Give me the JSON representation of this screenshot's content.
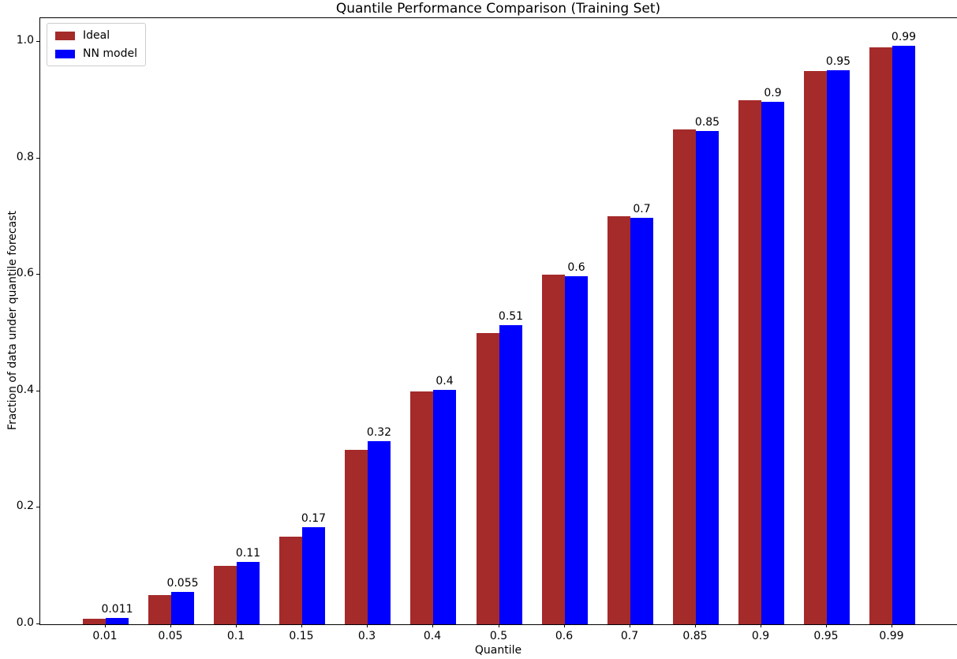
{
  "chart_data": {
    "type": "bar",
    "title": "Quantile Performance Comparison (Training Set)",
    "xlabel": "Quantile",
    "ylabel": "Fraction of data under quantile forecast",
    "categories": [
      "0.01",
      "0.05",
      "0.1",
      "0.15",
      "0.3",
      "0.4",
      "0.5",
      "0.6",
      "0.7",
      "0.85",
      "0.9",
      "0.95",
      "0.99"
    ],
    "series": [
      {
        "name": "Ideal",
        "color": "#A52A2A",
        "values": [
          0.01,
          0.05,
          0.1,
          0.15,
          0.3,
          0.4,
          0.5,
          0.6,
          0.7,
          0.85,
          0.9,
          0.95,
          0.99
        ]
      },
      {
        "name": "NN model",
        "color": "#0000FF",
        "values": [
          0.011,
          0.055,
          0.107,
          0.166,
          0.315,
          0.403,
          0.513,
          0.598,
          0.698,
          0.847,
          0.897,
          0.951,
          0.993
        ]
      }
    ],
    "bar_labels": [
      "0.011",
      "0.055",
      "0.11",
      "0.17",
      "0.32",
      "0.4",
      "0.51",
      "0.6",
      "0.7",
      "0.85",
      "0.9",
      "0.95",
      "0.99"
    ],
    "yticks": [
      "0.0",
      "0.2",
      "0.4",
      "0.6",
      "0.8",
      "1.0"
    ],
    "ylim": [
      0,
      1.04
    ],
    "grid": false,
    "legend_position": "upper left"
  }
}
